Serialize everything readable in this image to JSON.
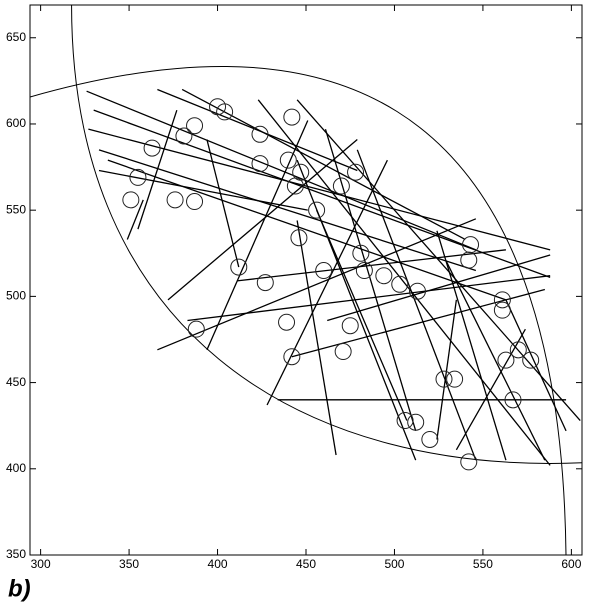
{
  "chart_data": {
    "type": "scatter",
    "panel_label": "b)",
    "xlim": [
      294,
      606
    ],
    "ylim": [
      350,
      669
    ],
    "xticks": [
      300,
      350,
      400,
      450,
      500,
      550,
      600
    ],
    "yticks": [
      350,
      400,
      450,
      500,
      550,
      600,
      650
    ],
    "color": "#222222",
    "x": [
      351,
      355,
      363,
      381,
      387,
      400,
      404,
      388,
      376,
      387,
      412,
      427,
      424,
      424,
      442,
      439,
      442,
      440,
      444,
      447,
      446,
      456,
      471,
      475,
      470,
      478,
      481,
      483,
      460,
      494,
      503,
      513,
      506,
      512,
      520,
      528,
      534,
      542,
      543,
      542,
      563,
      570,
      577,
      561,
      561,
      567
    ],
    "y": [
      556,
      569,
      586,
      593,
      599,
      610,
      607,
      481,
      556,
      555,
      517,
      508,
      594,
      577,
      604,
      485,
      465,
      579,
      564,
      572,
      534,
      550,
      468,
      483,
      564,
      572,
      525,
      515,
      515,
      512,
      507,
      503,
      428,
      427,
      417,
      452,
      452,
      404,
      530,
      521,
      463,
      469,
      463,
      498,
      492,
      440
    ],
    "segments": [
      {
        "x": [
          326,
          546
        ],
        "y": [
          619,
          527
        ]
      },
      {
        "x": [
          330,
          588
        ],
        "y": [
          608,
          511
        ]
      },
      {
        "x": [
          327,
          588
        ],
        "y": [
          597,
          527
        ]
      },
      {
        "x": [
          333,
          546
        ],
        "y": [
          585,
          515
        ]
      },
      {
        "x": [
          338,
          563
        ],
        "y": [
          579,
          498
        ]
      },
      {
        "x": [
          366,
          479
        ],
        "y": [
          620,
          573
        ]
      },
      {
        "x": [
          380,
          540
        ],
        "y": [
          620,
          533
        ]
      },
      {
        "x": [
          445,
          605
        ],
        "y": [
          614,
          428
        ]
      },
      {
        "x": [
          423,
          588
        ],
        "y": [
          614,
          402
        ]
      },
      {
        "x": [
          394,
          412
        ],
        "y": [
          591,
          517
        ]
      },
      {
        "x": [
          355,
          377
        ],
        "y": [
          539,
          608
        ]
      },
      {
        "x": [
          372,
          479
        ],
        "y": [
          498,
          591
        ]
      },
      {
        "x": [
          366,
          546
        ],
        "y": [
          469,
          545
        ]
      },
      {
        "x": [
          383,
          588
        ],
        "y": [
          486,
          512
        ]
      },
      {
        "x": [
          394,
          451
        ],
        "y": [
          469,
          602
        ]
      },
      {
        "x": [
          428,
          496
        ],
        "y": [
          437,
          579
        ]
      },
      {
        "x": [
          434,
          597
        ],
        "y": [
          440,
          440
        ]
      },
      {
        "x": [
          467,
          445
        ],
        "y": [
          408,
          544
        ]
      },
      {
        "x": [
          512,
          445
        ],
        "y": [
          405,
          579
        ]
      },
      {
        "x": [
          461,
          512
        ],
        "y": [
          597,
          422
        ]
      },
      {
        "x": [
          479,
          546
        ],
        "y": [
          585,
          405
        ]
      },
      {
        "x": [
          507,
          456
        ],
        "y": [
          428,
          550
        ]
      },
      {
        "x": [
          462,
          588
        ],
        "y": [
          486,
          524
        ]
      },
      {
        "x": [
          442,
          585
        ],
        "y": [
          465,
          504
        ]
      },
      {
        "x": [
          524,
          535
        ],
        "y": [
          417,
          498
        ]
      },
      {
        "x": [
          535,
          574
        ],
        "y": [
          411,
          481
        ]
      },
      {
        "x": [
          563,
          524
        ],
        "y": [
          405,
          538
        ]
      },
      {
        "x": [
          585,
          529
        ],
        "y": [
          405,
          521
        ]
      },
      {
        "x": [
          597,
          563
        ],
        "y": [
          422,
          498
        ]
      },
      {
        "x": [
          411,
          563
        ],
        "y": [
          509,
          527
        ]
      },
      {
        "x": [
          358,
          349
        ],
        "y": [
          556,
          533
        ]
      },
      {
        "x": [
          333,
          451
        ],
        "y": [
          573,
          550
        ]
      }
    ]
  }
}
